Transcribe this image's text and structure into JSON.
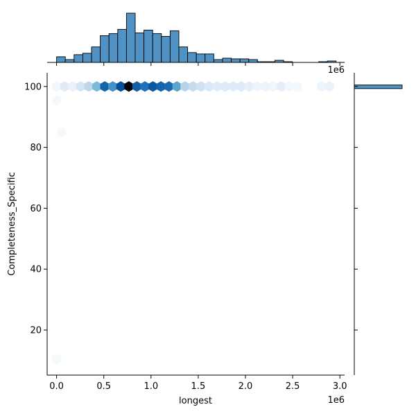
{
  "chart_data": [
    {
      "type": "heatmap",
      "subtype": "hexbin",
      "xlabel": "longest",
      "ylabel": "Completeness_Specific",
      "x_offset_label": "1e6",
      "xlim": [
        -0.1,
        3.05
      ],
      "ylim": [
        5.2,
        104.5
      ],
      "xticks": [
        0.0,
        0.5,
        1.0,
        1.5,
        2.0,
        2.5,
        3.0
      ],
      "xtick_labels": [
        "0.0",
        "0.5",
        "1.0",
        "1.5",
        "2.0",
        "2.5",
        "3.0"
      ],
      "yticks": [
        20,
        40,
        60,
        80,
        100
      ],
      "ytick_labels": [
        "20",
        "40",
        "60",
        "80",
        "100"
      ],
      "cmap": "Blues",
      "grid": false,
      "hexbins": [
        {
          "x": 0.0,
          "y": 100,
          "d": 0.03
        },
        {
          "x": 0.085,
          "y": 100,
          "d": 0.12
        },
        {
          "x": 0.17,
          "y": 100,
          "d": 0.07
        },
        {
          "x": 0.255,
          "y": 100,
          "d": 0.18
        },
        {
          "x": 0.34,
          "y": 100,
          "d": 0.28
        },
        {
          "x": 0.425,
          "y": 100,
          "d": 0.45
        },
        {
          "x": 0.51,
          "y": 100,
          "d": 0.8
        },
        {
          "x": 0.595,
          "y": 100,
          "d": 0.62
        },
        {
          "x": 0.68,
          "y": 100,
          "d": 0.88
        },
        {
          "x": 0.765,
          "y": 100,
          "d": 1.0
        },
        {
          "x": 0.85,
          "y": 100,
          "d": 0.82
        },
        {
          "x": 0.935,
          "y": 100,
          "d": 0.75
        },
        {
          "x": 1.02,
          "y": 100,
          "d": 0.85
        },
        {
          "x": 1.105,
          "y": 100,
          "d": 0.8
        },
        {
          "x": 1.19,
          "y": 100,
          "d": 0.78
        },
        {
          "x": 1.275,
          "y": 100,
          "d": 0.55
        },
        {
          "x": 1.36,
          "y": 100,
          "d": 0.3
        },
        {
          "x": 1.445,
          "y": 100,
          "d": 0.25
        },
        {
          "x": 1.53,
          "y": 100,
          "d": 0.2
        },
        {
          "x": 1.615,
          "y": 100,
          "d": 0.15
        },
        {
          "x": 1.7,
          "y": 100,
          "d": 0.12
        },
        {
          "x": 1.785,
          "y": 100,
          "d": 0.13
        },
        {
          "x": 1.87,
          "y": 100,
          "d": 0.12
        },
        {
          "x": 1.955,
          "y": 100,
          "d": 0.13
        },
        {
          "x": 2.04,
          "y": 100,
          "d": 0.1
        },
        {
          "x": 2.125,
          "y": 100,
          "d": 0.05
        },
        {
          "x": 2.21,
          "y": 100,
          "d": 0.06
        },
        {
          "x": 2.295,
          "y": 100,
          "d": 0.04
        },
        {
          "x": 2.38,
          "y": 100,
          "d": 0.09
        },
        {
          "x": 2.465,
          "y": 100,
          "d": 0.03
        },
        {
          "x": 2.55,
          "y": 100,
          "d": 0.02
        },
        {
          "x": 2.805,
          "y": 100,
          "d": 0.05
        },
        {
          "x": 2.89,
          "y": 100,
          "d": 0.07
        },
        {
          "x": 0.0,
          "y": 95.5,
          "d": 0.015
        },
        {
          "x": 0.05,
          "y": 85,
          "d": 0.015
        },
        {
          "x": 0.0,
          "y": 10.5,
          "d": 0.015
        }
      ]
    },
    {
      "type": "bar",
      "subtype": "histogram",
      "position": "top-marginal",
      "bin_start": 0.0,
      "bin_width": 0.0925,
      "counts": [
        8,
        4,
        11,
        13,
        22,
        38,
        41,
        47,
        70,
        42,
        46,
        41,
        37,
        45,
        22,
        14,
        12,
        12,
        4,
        6,
        5,
        5,
        4,
        1,
        1,
        3,
        1,
        0,
        0,
        0,
        1,
        2
      ],
      "ylim": [
        0,
        70
      ]
    },
    {
      "type": "bar",
      "subtype": "histogram",
      "position": "right-marginal",
      "orientation": "horizontal",
      "bins": [
        {
          "y0": 99.3,
          "y1": 100.5,
          "count": 1
        }
      ],
      "xlim": [
        0,
        1
      ]
    }
  ]
}
